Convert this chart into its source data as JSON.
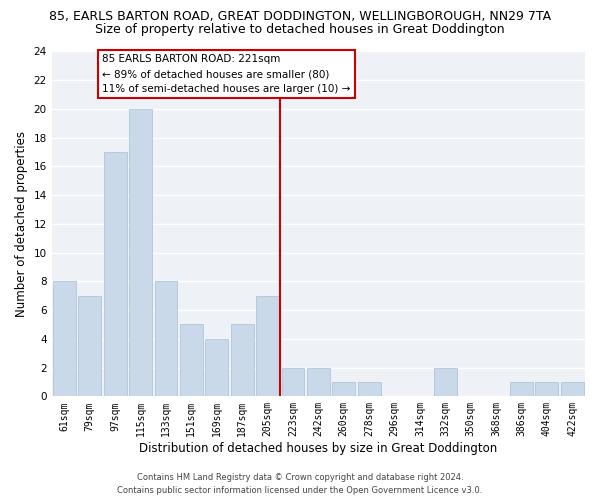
{
  "title_line1": "85, EARLS BARTON ROAD, GREAT DODDINGTON, WELLINGBOROUGH, NN29 7TA",
  "title_line2": "Size of property relative to detached houses in Great Doddington",
  "xlabel": "Distribution of detached houses by size in Great Doddington",
  "ylabel": "Number of detached properties",
  "bin_labels": [
    "61sqm",
    "79sqm",
    "97sqm",
    "115sqm",
    "133sqm",
    "151sqm",
    "169sqm",
    "187sqm",
    "205sqm",
    "223sqm",
    "242sqm",
    "260sqm",
    "278sqm",
    "296sqm",
    "314sqm",
    "332sqm",
    "350sqm",
    "368sqm",
    "386sqm",
    "404sqm",
    "422sqm"
  ],
  "counts": [
    8,
    7,
    17,
    20,
    8,
    5,
    4,
    5,
    7,
    2,
    2,
    1,
    1,
    0,
    0,
    2,
    0,
    0,
    1,
    1,
    1
  ],
  "bar_color": "#c9d9ea",
  "bar_edge_color": "#a8bfd4",
  "vline_x_index": 9,
  "vline_color": "#cc0000",
  "annotation_text": "85 EARLS BARTON ROAD: 221sqm\n← 89% of detached houses are smaller (80)\n11% of semi-detached houses are larger (10) →",
  "annotation_box_color": "#cc0000",
  "ylim": [
    0,
    24
  ],
  "yticks": [
    0,
    2,
    4,
    6,
    8,
    10,
    12,
    14,
    16,
    18,
    20,
    22,
    24
  ],
  "background_color": "#eef2f7",
  "grid_color": "#ffffff",
  "footer_line1": "Contains HM Land Registry data © Crown copyright and database right 2024.",
  "footer_line2": "Contains public sector information licensed under the Open Government Licence v3.0.",
  "title_fontsize": 9,
  "subtitle_fontsize": 9,
  "axis_label_fontsize": 8.5,
  "tick_fontsize": 7,
  "annotation_fontsize": 7.5,
  "footer_fontsize": 6
}
